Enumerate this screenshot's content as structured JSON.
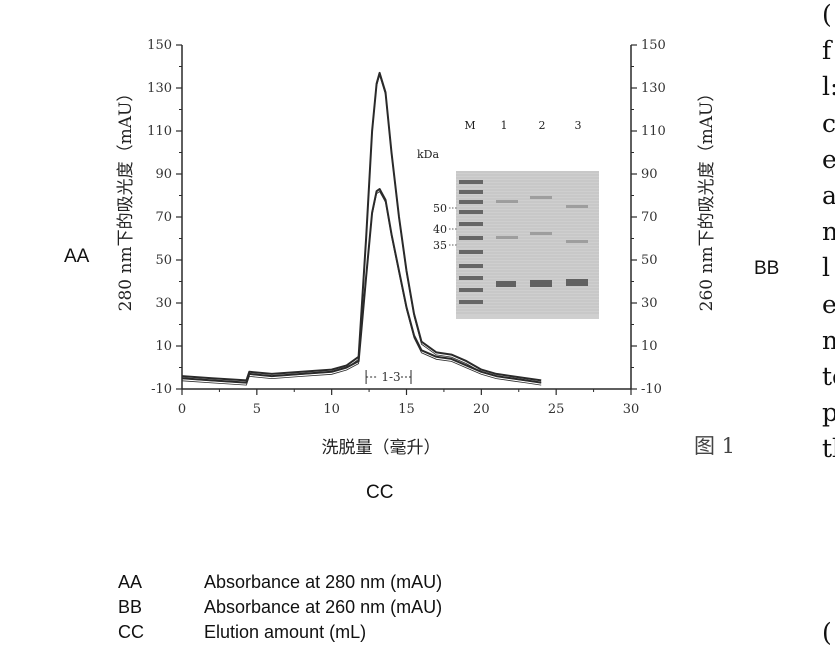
{
  "chart_data": {
    "type": "line",
    "xlabel": "洗脱量（毫升）",
    "ylabel_left": "280 nm下的吸光度（mAU）",
    "ylabel_right": "260 nm下的吸光度（mAU）",
    "xlim": [
      0,
      30
    ],
    "ylim": [
      -10,
      150
    ],
    "xticks": [
      "0",
      "5",
      "10",
      "15",
      "20",
      "25",
      "30"
    ],
    "yticks": [
      "-10",
      "10",
      "30",
      "50",
      "70",
      "90",
      "110",
      "130",
      "150"
    ],
    "series": [
      {
        "name": "280 nm",
        "x": [
          0,
          2,
          4.3,
          4.5,
          6,
          8,
          10,
          11,
          11.8,
          12.3,
          12.7,
          13.0,
          13.2,
          13.6,
          14.0,
          14.5,
          15.0,
          15.5,
          16,
          17,
          18,
          19,
          20,
          21,
          22,
          23,
          24
        ],
        "y": [
          -4,
          -5,
          -6,
          -2,
          -3,
          -2,
          -1,
          1,
          5,
          60,
          110,
          132,
          137,
          128,
          100,
          70,
          45,
          25,
          12,
          7,
          6,
          3,
          -1,
          -3,
          -4,
          -5,
          -6
        ]
      },
      {
        "name": "260 nm",
        "x": [
          0,
          2,
          4.3,
          4.5,
          6,
          8,
          10,
          11,
          11.8,
          12.3,
          12.7,
          13.0,
          13.2,
          13.6,
          14.0,
          14.5,
          15.0,
          15.5,
          16,
          17,
          18,
          19,
          20,
          21,
          22,
          23,
          24
        ],
        "y": [
          -5,
          -6,
          -7,
          -3,
          -4,
          -3,
          -2,
          0,
          3,
          42,
          72,
          82,
          83,
          78,
          62,
          45,
          28,
          15,
          8,
          5,
          4,
          1,
          -2,
          -4,
          -5,
          -6,
          -7
        ]
      }
    ],
    "annotations": {
      "fraction_bracket": "1-3",
      "fraction_range": [
        12.3,
        15.3
      ]
    },
    "gel_inset": {
      "lane_labels": [
        "M",
        "1",
        "2",
        "3"
      ],
      "unit_label": "kDa",
      "marker_labels": [
        "50",
        "40",
        "35"
      ]
    },
    "grid": false,
    "legend": "none"
  },
  "figure_label": "图 1",
  "codes": {
    "left": "AA",
    "right": "BB",
    "bottom": "CC"
  },
  "legend_table": [
    {
      "code": "AA",
      "meaning": "Absorbance at 280 nm (mAU)"
    },
    {
      "code": "BB",
      "meaning": "Absorbance at 260 nm (mAU)"
    },
    {
      "code": "CC",
      "meaning": "Elution amount (mL)"
    }
  ],
  "right_column_fragments": [
    "(",
    "f",
    "l:",
    "c",
    "e",
    "a",
    "n",
    "l",
    "e",
    "n",
    "to",
    "p",
    "tl",
    "("
  ],
  "colors": {
    "line": "#2a2a2a",
    "gel_background": "#cfcfcf",
    "gel_band": "#555555"
  }
}
